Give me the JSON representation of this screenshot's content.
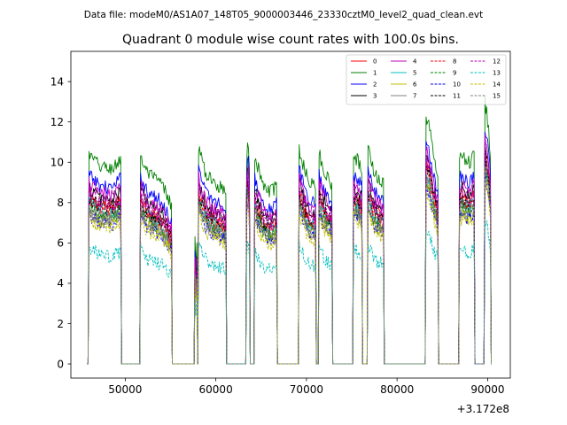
{
  "chart_data": {
    "type": "line",
    "suptitle": "Data file: modeM0/AS1A07_148T05_9000003446_23330cztM0_level2_quad_clean.evt",
    "title": "Quadrant 0 module wise count rates with 100.0s bins.",
    "xlabel": "",
    "ylabel": "",
    "x_offset_label": "+3.172e8",
    "xlim": [
      44000,
      92500
    ],
    "ylim": [
      -0.7,
      15.5
    ],
    "xticks": [
      50000,
      60000,
      70000,
      80000,
      90000
    ],
    "xtick_labels": [
      "50000",
      "60000",
      "70000",
      "80000",
      "90000"
    ],
    "yticks": [
      0,
      2,
      4,
      6,
      8,
      10,
      12,
      14
    ],
    "ytick_labels": [
      "0",
      "2",
      "4",
      "6",
      "8",
      "10",
      "12",
      "14"
    ],
    "segments": [
      {
        "start": 46000,
        "end": 49500,
        "profile": [
          1.02,
          1.0,
          0.99,
          0.97,
          0.96,
          0.96,
          0.95,
          0.95,
          0.95,
          0.96,
          0.98,
          1.0
        ]
      },
      {
        "start": 51700,
        "end": 55100,
        "profile": [
          1.02,
          0.97,
          0.94,
          0.92,
          0.91,
          0.9,
          0.89,
          0.88,
          0.86,
          0.83,
          0.8,
          0.78
        ]
      },
      {
        "start": 57700,
        "end": 57900,
        "profile": [
          0.6,
          0.45,
          0.6
        ]
      },
      {
        "start": 58100,
        "end": 61100,
        "profile": [
          1.05,
          1.0,
          0.95,
          0.92,
          0.9,
          0.89,
          0.88,
          0.87,
          0.86,
          0.85,
          0.84
        ]
      },
      {
        "start": 63400,
        "end": 63700,
        "profile": [
          1.0,
          1.15,
          0.95
        ]
      },
      {
        "start": 64300,
        "end": 66700,
        "profile": [
          1.0,
          0.97,
          0.92,
          0.88,
          0.86,
          0.85,
          0.84,
          0.84,
          0.85,
          0.87
        ]
      },
      {
        "start": 69200,
        "end": 71000,
        "profile": [
          1.05,
          1.0,
          0.96,
          0.92,
          0.9,
          0.88,
          0.87,
          0.86
        ]
      },
      {
        "start": 71400,
        "end": 72800,
        "profile": [
          1.02,
          0.98,
          0.94,
          0.91,
          0.89,
          0.87
        ]
      },
      {
        "start": 75200,
        "end": 76100,
        "profile": [
          1.02,
          1.0,
          0.98,
          0.96
        ]
      },
      {
        "start": 76800,
        "end": 78500,
        "profile": [
          1.05,
          1.0,
          0.95,
          0.92,
          0.9,
          0.89,
          0.88
        ]
      },
      {
        "start": 83200,
        "end": 84500,
        "profile": [
          1.2,
          1.18,
          1.1,
          1.03,
          0.97,
          0.93
        ]
      },
      {
        "start": 86900,
        "end": 88500,
        "profile": [
          1.0,
          1.02,
          1.0,
          0.98,
          0.99,
          1.02
        ]
      },
      {
        "start": 89700,
        "end": 90300,
        "profile": [
          1.28,
          1.22,
          1.15,
          1.02
        ]
      }
    ],
    "series": [
      {
        "name": "0",
        "color": "#ff0000",
        "dash": "solid",
        "base": 8.2
      },
      {
        "name": "1",
        "color": "#008000",
        "dash": "solid",
        "base": 10.2
      },
      {
        "name": "2",
        "color": "#0000ff",
        "dash": "solid",
        "base": 9.2
      },
      {
        "name": "3",
        "color": "#000000",
        "dash": "solid",
        "base": 8.6
      },
      {
        "name": "4",
        "color": "#bf00bf",
        "dash": "solid",
        "base": 8.8
      },
      {
        "name": "5",
        "color": "#00bfbf",
        "dash": "solid",
        "base": 7.9
      },
      {
        "name": "6",
        "color": "#bfbf00",
        "dash": "solid",
        "base": 7.4
      },
      {
        "name": "7",
        "color": "#808080",
        "dash": "solid",
        "base": 7.7
      },
      {
        "name": "8",
        "color": "#ff0000",
        "dash": "dashed",
        "base": 8.0
      },
      {
        "name": "9",
        "color": "#008000",
        "dash": "dashed",
        "base": 7.6
      },
      {
        "name": "10",
        "color": "#0000ff",
        "dash": "dashed",
        "base": 7.3
      },
      {
        "name": "11",
        "color": "#000000",
        "dash": "dashed",
        "base": 8.1
      },
      {
        "name": "12",
        "color": "#bf00bf",
        "dash": "dashed",
        "base": 8.3
      },
      {
        "name": "13",
        "color": "#00bfbf",
        "dash": "dashed",
        "base": 5.6
      },
      {
        "name": "14",
        "color": "#bfbf00",
        "dash": "dashed",
        "base": 7.1
      },
      {
        "name": "15",
        "color": "#808080",
        "dash": "dashed",
        "base": 7.5
      }
    ],
    "legend_position": "top-right",
    "grid": false
  }
}
